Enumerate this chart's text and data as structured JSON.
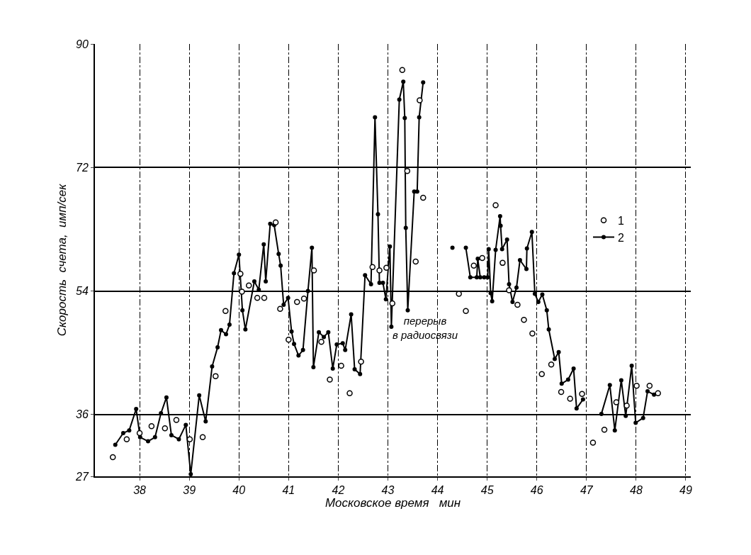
{
  "chart_data": {
    "type": "line",
    "xlabel": "Московское время   мин",
    "ylabel": "Скорость  счета,  имп/сек",
    "xlim": [
      37.1,
      49.1
    ],
    "ylim": [
      27,
      90
    ],
    "xticks": [
      38,
      39,
      40,
      41,
      42,
      43,
      44,
      45,
      46,
      47,
      48,
      49
    ],
    "yticks": [
      27,
      36,
      54,
      72,
      90
    ],
    "grid": true,
    "legend": "right",
    "marker": "circle",
    "annotations": [
      "перерыв\nв радиосвязи"
    ],
    "series": [
      {
        "name": "1",
        "type": "scatter",
        "color": "#000000",
        "x": [
          37.46,
          37.74,
          38.0,
          38.24,
          38.51,
          38.74,
          39.01,
          39.27,
          39.53,
          39.73,
          40.03,
          40.06,
          40.2,
          40.37,
          40.51,
          40.74,
          40.83,
          41.0,
          41.17,
          41.31,
          41.51,
          41.66,
          41.83,
          42.06,
          42.23,
          42.46,
          42.69,
          42.83,
          42.97,
          43.09,
          43.29,
          43.39,
          43.56,
          43.64,
          43.71,
          44.43,
          44.57,
          44.73,
          44.9,
          45.17,
          45.31,
          45.44,
          45.61,
          45.74,
          45.91,
          46.1,
          46.29,
          46.49,
          46.67,
          46.91,
          47.13,
          47.36,
          47.6,
          47.81,
          48.01,
          48.27,
          48.44
        ],
        "values": [
          29.8,
          32.4,
          33.3,
          34.3,
          34.0,
          35.2,
          32.4,
          32.7,
          41.6,
          51.1,
          56.5,
          53.9,
          54.8,
          53.0,
          53.0,
          64.0,
          51.4,
          46.9,
          52.4,
          52.9,
          57.0,
          46.6,
          41.1,
          43.1,
          39.1,
          43.7,
          57.5,
          57.0,
          57.4,
          52.2,
          86.2,
          71.5,
          58.3,
          81.8,
          67.6,
          53.6,
          51.1,
          57.7,
          58.8,
          66.5,
          58.1,
          54.1,
          52.0,
          49.8,
          47.8,
          41.9,
          43.3,
          39.3,
          38.3,
          39.0,
          31.9,
          33.8,
          37.8,
          37.3,
          40.2,
          40.2,
          39.1
        ]
      },
      {
        "name": "2",
        "color": "#000000",
        "x": [
          37.51,
          37.67,
          37.79,
          37.93,
          38.01,
          38.17,
          38.31,
          38.43,
          38.54,
          38.64,
          38.79,
          38.93,
          39.03,
          39.2,
          39.33,
          39.46,
          39.57,
          39.64,
          39.74,
          39.81,
          39.9,
          40.0,
          40.07,
          40.13,
          40.31,
          40.4,
          40.5,
          40.54,
          40.63,
          40.71,
          40.8,
          40.84,
          40.9,
          40.99,
          41.06,
          41.11,
          41.2,
          41.29,
          41.39,
          41.47,
          41.5,
          41.61,
          41.71,
          41.8,
          41.89,
          41.97,
          42.09,
          42.14,
          42.26,
          42.33,
          42.44,
          42.54,
          42.66,
          42.74,
          42.8,
          42.83,
          42.9,
          42.96,
          43.04,
          43.07,
          43.23,
          43.31,
          43.34,
          43.36,
          43.4,
          43.53,
          43.59,
          43.63,
          43.71,
          44.0,
          44.3,
          44.45,
          44.57,
          44.66,
          44.79,
          44.81,
          44.86,
          44.94,
          45.01,
          45.03,
          45.07,
          45.1,
          45.17,
          45.26,
          45.27,
          45.3,
          45.4,
          45.44,
          45.51,
          45.59,
          45.66,
          45.79,
          45.8,
          45.9,
          45.96,
          46.03,
          46.11,
          46.2,
          46.24,
          46.36,
          46.44,
          46.5,
          46.63,
          46.74,
          46.8,
          46.93,
          47.1,
          47.3,
          47.47,
          47.57,
          47.7,
          47.79,
          47.91,
          47.99,
          48.14,
          48.23,
          48.36
        ],
        "values": [
          31.6,
          33.3,
          33.7,
          36.8,
          32.7,
          32.1,
          32.7,
          36.2,
          38.5,
          33.0,
          32.4,
          34.5,
          27.3,
          38.8,
          35.0,
          43.0,
          45.8,
          48.3,
          47.7,
          49.1,
          56.6,
          59.3,
          51.2,
          48.4,
          55.4,
          54.2,
          60.8,
          55.4,
          63.8,
          63.6,
          59.4,
          57.7,
          52.0,
          53.0,
          48.1,
          46.3,
          44.6,
          45.4,
          54.0,
          60.3,
          42.9,
          48.0,
          47.3,
          48.0,
          42.7,
          46.2,
          46.4,
          45.4,
          50.6,
          42.6,
          41.9,
          56.3,
          55.0,
          79.3,
          65.2,
          55.2,
          55.2,
          52.8,
          60.5,
          48.8,
          81.9,
          84.5,
          79.2,
          63.2,
          51.2,
          68.5,
          68.5,
          79.3,
          84.4,
          null,
          60.3,
          null,
          60.3,
          56.0,
          56.0,
          58.7,
          56.0,
          56.0,
          56.0,
          60.1,
          53.7,
          52.5,
          60.0,
          64.9,
          63.5,
          60.1,
          61.5,
          55.0,
          52.4,
          54.5,
          58.5,
          57.2,
          60.2,
          62.6,
          53.6,
          52.4,
          53.5,
          51.2,
          48.4,
          44.1,
          45.1,
          40.5,
          41.1,
          42.7,
          36.9,
          38.2,
          null,
          36.1,
          40.3,
          33.7,
          41.0,
          35.8,
          43.1,
          34.8,
          35.5,
          39.4,
          38.9
        ]
      }
    ]
  }
}
